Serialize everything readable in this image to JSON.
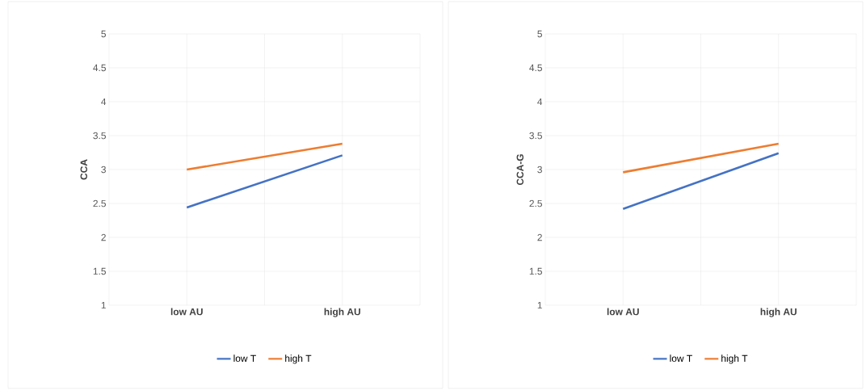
{
  "chart_data": [
    {
      "type": "line",
      "ylabel": "CCA",
      "categories": [
        "low AU",
        "high AU"
      ],
      "series": [
        {
          "name": "low T",
          "color": "#4472c4",
          "values": [
            2.44,
            3.21
          ]
        },
        {
          "name": "high T",
          "color": "#ed7d31",
          "values": [
            3.0,
            3.38
          ]
        }
      ],
      "ylim": [
        1,
        5
      ],
      "yticks": [
        1,
        1.5,
        2,
        2.5,
        3,
        3.5,
        4,
        4.5,
        5
      ],
      "grid": true,
      "legend": "bottom"
    },
    {
      "type": "line",
      "ylabel": "CCA-G",
      "categories": [
        "low AU",
        "high AU"
      ],
      "series": [
        {
          "name": "low T",
          "color": "#4472c4",
          "values": [
            2.42,
            3.24
          ]
        },
        {
          "name": "high T",
          "color": "#ed7d31",
          "values": [
            2.96,
            3.38
          ]
        }
      ],
      "ylim": [
        1,
        5
      ],
      "yticks": [
        1,
        1.5,
        2,
        2.5,
        3,
        3.5,
        4,
        4.5,
        5
      ],
      "grid": true,
      "legend": "bottom"
    }
  ]
}
